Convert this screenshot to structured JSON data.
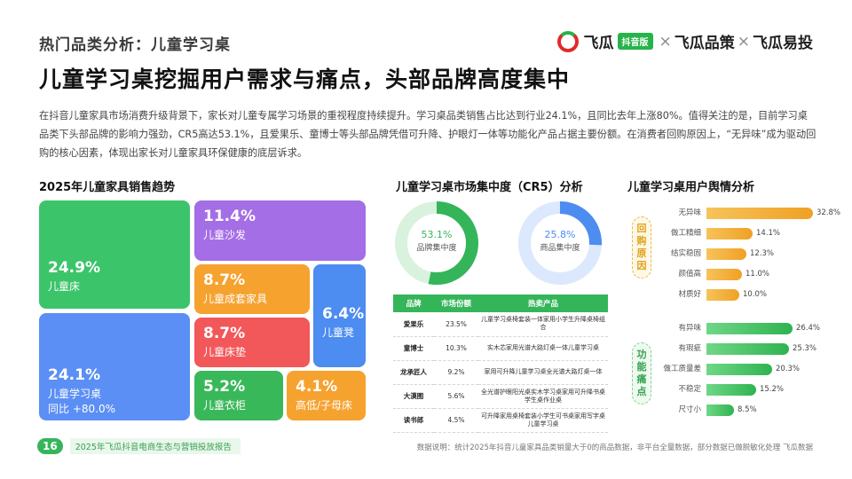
{
  "header": {
    "category": "热门品类分析：儿童学习桌",
    "logo": {
      "brand1": "飞瓜",
      "badge": "抖音版",
      "x1": "×",
      "brand2": "飞瓜品策",
      "x2": "×",
      "brand3": "飞瓜易投"
    }
  },
  "title": "儿童学习桌挖掘用户需求与痛点，头部品牌高度集中",
  "intro": "在抖音儿童家具市场消费升级背景下，家长对儿童专属学习场景的重视程度持续提升。学习桌品类销售占比达到行业24.1%，且同比去年上涨80%。值得关注的是，目前学习桌品类下头部品牌的影响力强劲，CR5高达53.1%，且爱果乐、童博士等头部品牌凭借可升降、护眼灯一体等功能化产品占据主要份额。在消费者回购原因上，“无异味”成为驱动回购的核心因素，体现出家长对儿童家具环保健康的底层诉求。",
  "treemap": {
    "title": "2025年儿童家具销售趋势",
    "tiles": [
      {
        "pct": "24.9%",
        "label": "儿童床",
        "color": "#3cc46a"
      },
      {
        "pct": "24.1%",
        "label": "儿童学习桌",
        "sub": "同比 +80.0%",
        "color": "#5b8ff5"
      },
      {
        "pct": "11.4%",
        "label": "儿童沙发",
        "color": "#a46ee6"
      },
      {
        "pct": "8.7%",
        "label": "儿童成套家具",
        "color": "#f6a22f"
      },
      {
        "pct": "8.7%",
        "label": "儿童床垫",
        "color": "#f2575a"
      },
      {
        "pct": "6.4%",
        "label": "儿童凳",
        "color": "#4d8cf0"
      },
      {
        "pct": "5.2%",
        "label": "儿童衣柜",
        "color": "#39b85a"
      },
      {
        "pct": "4.1%",
        "label": "高低/子母床",
        "color": "#f6a22f"
      }
    ]
  },
  "cr5": {
    "title": "儿童学习桌市场集中度（CR5）分析",
    "donuts": [
      {
        "pct": "53.1%",
        "caption": "品牌集中度",
        "value": 53.1,
        "color": "#35b55a",
        "track": "#d8f2de"
      },
      {
        "pct": "25.8%",
        "caption": "商品集中度",
        "value": 25.8,
        "color": "#4d8cf0",
        "track": "#dce8fd"
      }
    ],
    "table": {
      "headers": [
        "品牌",
        "市场份额",
        "热卖产品"
      ],
      "rows": [
        [
          "爱果乐",
          "23.5%",
          "儿童学习桌椅套装一体家用小学生升降桌椅组合"
        ],
        [
          "童博士",
          "10.3%",
          "实木芯家用光谱大路灯桌一体儿童学习桌"
        ],
        [
          "龙承匠人",
          "9.2%",
          "家用可升降儿童学习桌全光谱大路灯桌一体"
        ],
        [
          "大漠图",
          "5.6%",
          "全光谱护眼阳光桌实木学习桌家用可升降书桌学生桌作业桌"
        ],
        [
          "读书郎",
          "4.5%",
          "可升降家用桌椅套装小学生可书桌家用写字桌儿童学习桌"
        ]
      ]
    }
  },
  "sentiment": {
    "title": "儿童学习桌用户舆情分析",
    "group1_label": "回购原因",
    "group2_label": "功能痛点",
    "repurchase": [
      {
        "label": "无异味",
        "value": 32.8,
        "text": "32.8%"
      },
      {
        "label": "做工精细",
        "value": 14.1,
        "text": "14.1%"
      },
      {
        "label": "结实稳固",
        "value": 12.3,
        "text": "12.3%"
      },
      {
        "label": "颜值高",
        "value": 11.0,
        "text": "11.0%"
      },
      {
        "label": "材质好",
        "value": 10.0,
        "text": "10.0%"
      }
    ],
    "pain": [
      {
        "label": "有异味",
        "value": 26.4,
        "text": "26.4%"
      },
      {
        "label": "有瑕疵",
        "value": 25.3,
        "text": "25.3%"
      },
      {
        "label": "做工质量差",
        "value": 20.3,
        "text": "20.3%"
      },
      {
        "label": "不稳定",
        "value": 15.2,
        "text": "15.2%"
      },
      {
        "label": "尺寸小",
        "value": 8.5,
        "text": "8.5%"
      }
    ]
  },
  "footer": {
    "page": "16",
    "report": "2025年飞瓜抖音电商生态与营销投放报告",
    "note": "数据说明：统计2025年抖音儿童家具品类销量大于0的商品数据，非平台全量数据，部分数据已做脱敏化处理    飞瓜数据"
  }
}
